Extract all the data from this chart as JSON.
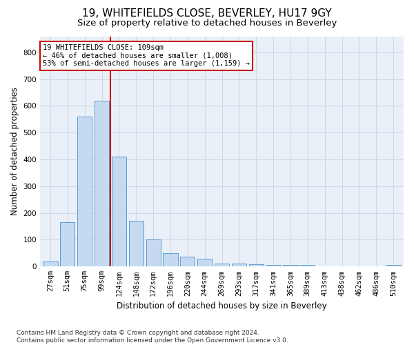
{
  "title": "19, WHITEFIELDS CLOSE, BEVERLEY, HU17 9GY",
  "subtitle": "Size of property relative to detached houses in Beverley",
  "xlabel": "Distribution of detached houses by size in Beverley",
  "ylabel": "Number of detached properties",
  "categories": [
    "27sqm",
    "51sqm",
    "75sqm",
    "99sqm",
    "124sqm",
    "148sqm",
    "172sqm",
    "196sqm",
    "220sqm",
    "244sqm",
    "269sqm",
    "293sqm",
    "317sqm",
    "341sqm",
    "365sqm",
    "389sqm",
    "413sqm",
    "438sqm",
    "462sqm",
    "486sqm",
    "510sqm"
  ],
  "values": [
    18,
    165,
    560,
    620,
    410,
    170,
    102,
    50,
    38,
    30,
    12,
    12,
    8,
    5,
    5,
    5,
    0,
    0,
    0,
    0,
    7
  ],
  "bar_color": "#c5d9f0",
  "bar_edge_color": "#5b9bd5",
  "vline_x": 3.5,
  "vline_color": "#cc0000",
  "annotation_line1": "19 WHITEFIELDS CLOSE: 109sqm",
  "annotation_line2": "← 46% of detached houses are smaller (1,008)",
  "annotation_line3": "53% of semi-detached houses are larger (1,159) →",
  "annotation_box_color": "#ffffff",
  "annotation_box_edge": "#cc0000",
  "ylim": [
    0,
    860
  ],
  "yticks": [
    0,
    100,
    200,
    300,
    400,
    500,
    600,
    700,
    800
  ],
  "grid_color": "#d0d8e8",
  "bg_color": "#eaf0f8",
  "footer": "Contains HM Land Registry data © Crown copyright and database right 2024.\nContains public sector information licensed under the Open Government Licence v3.0.",
  "title_fontsize": 11,
  "subtitle_fontsize": 9.5,
  "axis_label_fontsize": 8.5,
  "tick_fontsize": 7.5,
  "footer_fontsize": 6.5
}
